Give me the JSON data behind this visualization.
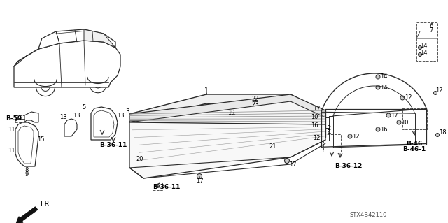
{
  "bg_color": "#ffffff",
  "diagram_code": "STX4B42110",
  "lc": "#2a2a2a",
  "labels": {
    "b50": "B-50",
    "b3611a": "B-36-11",
    "b3611b": "B-36-11",
    "b3612": "B-36-12",
    "b46": "B-46",
    "b461": "B-46-1",
    "fr": "FR."
  }
}
